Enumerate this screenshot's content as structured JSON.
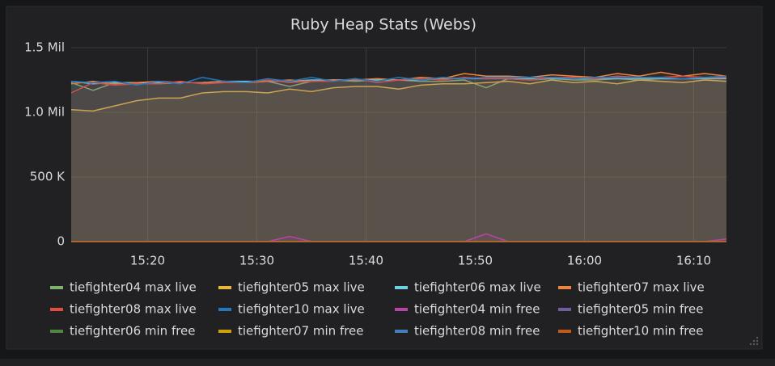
{
  "chart_data": {
    "type": "line",
    "title": "Ruby Heap Stats (Webs)",
    "x": [
      "15:13",
      "15:15",
      "15:17",
      "15:19",
      "15:21",
      "15:23",
      "15:25",
      "15:27",
      "15:29",
      "15:31",
      "15:33",
      "15:35",
      "15:37",
      "15:39",
      "15:41",
      "15:43",
      "15:45",
      "15:47",
      "15:49",
      "15:51",
      "15:53",
      "15:55",
      "15:57",
      "15:59",
      "16:01",
      "16:03",
      "16:05",
      "16:07",
      "16:09",
      "16:11",
      "16:13"
    ],
    "xlim": [
      "15:13",
      "16:13"
    ],
    "xticks": [
      "15:20",
      "15:30",
      "15:40",
      "15:50",
      "16:00",
      "16:10"
    ],
    "ylim": [
      0,
      1500000
    ],
    "yticks": [
      0,
      {
        "value": 500000,
        "label": "500 K"
      },
      {
        "value": 1000000,
        "label": "1.0 Mil"
      },
      {
        "value": 1500000,
        "label": "1.5 Mil"
      }
    ],
    "grid": true,
    "legend": "bottom",
    "series": [
      {
        "name": "tiefighter04 max live",
        "color": "#7eb26d",
        "values": [
          1230000,
          1170000,
          1230000,
          1230000,
          1220000,
          1230000,
          1230000,
          1240000,
          1230000,
          1240000,
          1200000,
          1240000,
          1250000,
          1240000,
          1250000,
          1250000,
          1240000,
          1240000,
          1250000,
          1190000,
          1260000,
          1250000,
          1260000,
          1250000,
          1250000,
          1260000,
          1250000,
          1260000,
          1260000,
          1260000,
          1260000
        ]
      },
      {
        "name": "tiefighter05 max live",
        "color": "#eab839",
        "values": [
          1020000,
          1010000,
          1050000,
          1090000,
          1110000,
          1110000,
          1150000,
          1160000,
          1160000,
          1150000,
          1180000,
          1160000,
          1190000,
          1200000,
          1200000,
          1180000,
          1210000,
          1220000,
          1220000,
          1230000,
          1240000,
          1220000,
          1250000,
          1230000,
          1240000,
          1220000,
          1250000,
          1240000,
          1230000,
          1250000,
          1240000
        ]
      },
      {
        "name": "tiefighter06 max live",
        "color": "#6ed0e0",
        "values": [
          1240000,
          1220000,
          1230000,
          1230000,
          1230000,
          1230000,
          1230000,
          1240000,
          1240000,
          1240000,
          1240000,
          1250000,
          1250000,
          1250000,
          1250000,
          1250000,
          1250000,
          1260000,
          1260000,
          1260000,
          1260000,
          1260000,
          1260000,
          1260000,
          1260000,
          1260000,
          1260000,
          1260000,
          1260000,
          1260000,
          1260000
        ]
      },
      {
        "name": "tiefighter07 max live",
        "color": "#ef843c",
        "values": [
          1220000,
          1240000,
          1220000,
          1230000,
          1240000,
          1230000,
          1230000,
          1240000,
          1230000,
          1240000,
          1250000,
          1240000,
          1250000,
          1250000,
          1260000,
          1250000,
          1270000,
          1260000,
          1300000,
          1280000,
          1280000,
          1270000,
          1290000,
          1280000,
          1270000,
          1300000,
          1280000,
          1310000,
          1280000,
          1300000,
          1280000
        ]
      },
      {
        "name": "tiefighter08 max live",
        "color": "#e24d42",
        "values": [
          1150000,
          1230000,
          1210000,
          1220000,
          1220000,
          1240000,
          1220000,
          1230000,
          1230000,
          1250000,
          1230000,
          1240000,
          1240000,
          1260000,
          1230000,
          1250000,
          1260000,
          1250000,
          1270000,
          1260000,
          1260000,
          1250000,
          1270000,
          1270000,
          1260000,
          1280000,
          1270000,
          1270000,
          1280000,
          1270000,
          1270000
        ]
      },
      {
        "name": "tiefighter10 max live",
        "color": "#1f78c1",
        "values": [
          1240000,
          1230000,
          1240000,
          1210000,
          1240000,
          1220000,
          1270000,
          1240000,
          1230000,
          1260000,
          1240000,
          1270000,
          1240000,
          1260000,
          1240000,
          1270000,
          1250000,
          1270000,
          1260000,
          1270000,
          1270000,
          1270000,
          1270000,
          1260000,
          1270000,
          1270000,
          1270000,
          1270000,
          1260000,
          1270000,
          1280000
        ]
      },
      {
        "name": "tiefighter04 min free",
        "color": "#ba43a9",
        "values": [
          0,
          0,
          0,
          0,
          0,
          0,
          0,
          0,
          0,
          0,
          40000,
          0,
          0,
          0,
          0,
          0,
          0,
          0,
          0,
          60000,
          0,
          0,
          0,
          0,
          0,
          0,
          0,
          0,
          0,
          0,
          20000
        ]
      },
      {
        "name": "tiefighter05 min free",
        "color": "#705da0",
        "values": [
          0,
          0,
          0,
          0,
          0,
          0,
          0,
          0,
          0,
          0,
          0,
          0,
          0,
          0,
          0,
          0,
          0,
          0,
          0,
          0,
          0,
          0,
          0,
          0,
          0,
          0,
          0,
          0,
          0,
          0,
          0
        ]
      },
      {
        "name": "tiefighter06 min free",
        "color": "#508642",
        "values": [
          0,
          0,
          0,
          0,
          0,
          0,
          0,
          0,
          0,
          0,
          0,
          0,
          0,
          0,
          0,
          0,
          0,
          0,
          0,
          0,
          0,
          0,
          0,
          0,
          0,
          0,
          0,
          0,
          0,
          0,
          0
        ]
      },
      {
        "name": "tiefighter07 min free",
        "color": "#cca300",
        "values": [
          0,
          0,
          0,
          0,
          0,
          0,
          0,
          0,
          0,
          0,
          0,
          0,
          0,
          0,
          0,
          0,
          0,
          0,
          0,
          0,
          0,
          0,
          0,
          0,
          0,
          0,
          0,
          0,
          0,
          0,
          0
        ]
      },
      {
        "name": "tiefighter08 min free",
        "color": "#447ebc",
        "values": [
          0,
          0,
          0,
          0,
          0,
          0,
          0,
          0,
          0,
          0,
          0,
          0,
          0,
          0,
          0,
          0,
          0,
          0,
          0,
          0,
          0,
          0,
          0,
          0,
          0,
          0,
          0,
          0,
          0,
          0,
          0
        ]
      },
      {
        "name": "tiefighter10 min free",
        "color": "#c15c17",
        "values": [
          0,
          0,
          0,
          0,
          0,
          0,
          0,
          0,
          0,
          0,
          0,
          0,
          0,
          0,
          0,
          0,
          0,
          0,
          0,
          0,
          0,
          0,
          0,
          0,
          0,
          0,
          0,
          0,
          0,
          0,
          0
        ]
      }
    ]
  }
}
